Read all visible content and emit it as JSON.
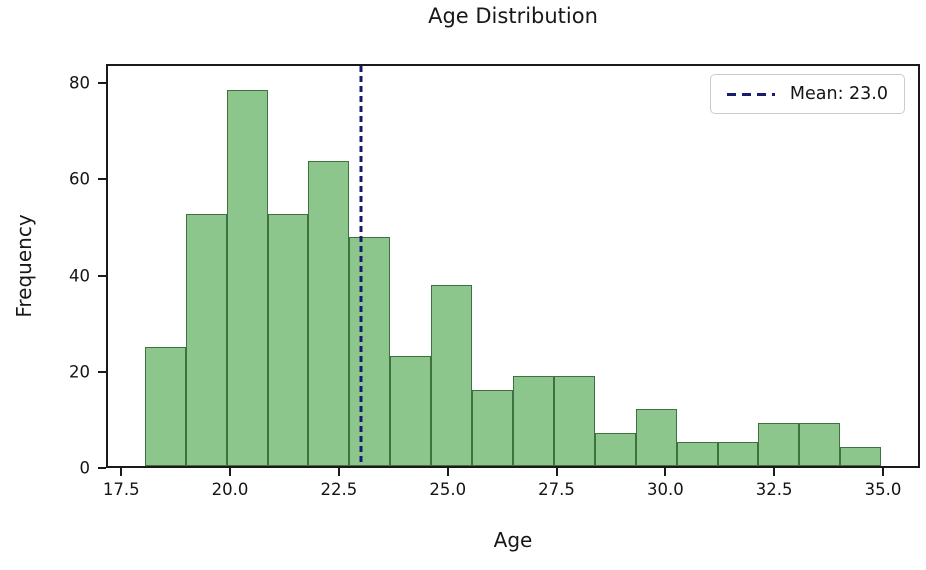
{
  "chart_data": {
    "type": "bar",
    "subtype": "histogram",
    "title": "Age Distribution",
    "xlabel": "Age",
    "ylabel": "Frequency",
    "bin_start": 18.0,
    "bin_width": 0.944444,
    "values": [
      25,
      53,
      79,
      53,
      64,
      48,
      23,
      38,
      16,
      19,
      19,
      7,
      12,
      5,
      5,
      9,
      9,
      4
    ],
    "xlim": [
      17.15,
      35.85
    ],
    "ylim": [
      0,
      84
    ],
    "x_ticks": [
      17.5,
      20.0,
      22.5,
      25.0,
      27.5,
      30.0,
      32.5,
      35.0
    ],
    "x_tick_labels": [
      "17.5",
      "20.0",
      "22.5",
      "25.0",
      "27.5",
      "30.0",
      "32.5",
      "35.0"
    ],
    "y_ticks": [
      0,
      20,
      40,
      60,
      80
    ],
    "y_tick_labels": [
      "0",
      "20",
      "40",
      "60",
      "80"
    ],
    "grid": false,
    "mean_line": {
      "value": 23.0,
      "color": "#191970",
      "style": "dashed"
    },
    "legend": {
      "position": "upper-right",
      "entries": [
        {
          "label": "Mean: 23.0",
          "color": "#191970",
          "style": "dashed"
        }
      ]
    },
    "colors": {
      "bar_fill": "#8cc68c",
      "bar_edge": "#3f7040",
      "mean_line": "#191970",
      "spine": "#1a1a1a",
      "background": "#ffffff"
    }
  }
}
